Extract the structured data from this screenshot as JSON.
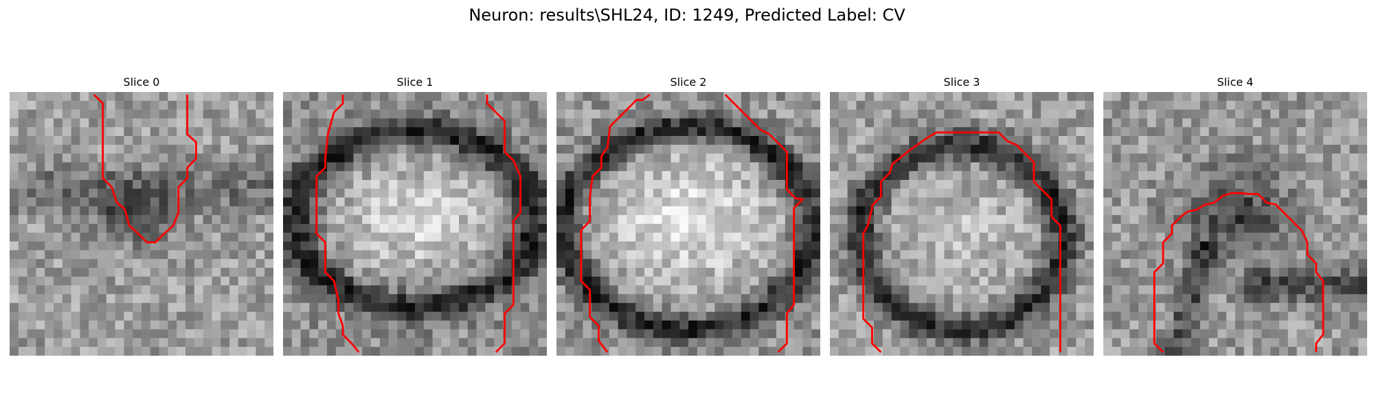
{
  "figure": {
    "title": "Neuron: results\\SHL24, ID: 1249, Predicted Label: CV"
  },
  "slices": [
    {
      "title": "Slice 0"
    },
    {
      "title": "Slice 1"
    },
    {
      "title": "Slice 2"
    },
    {
      "title": "Slice 3"
    },
    {
      "title": "Slice 4"
    }
  ],
  "colors": {
    "contour": "#ff0000",
    "background": "#ffffff"
  }
}
